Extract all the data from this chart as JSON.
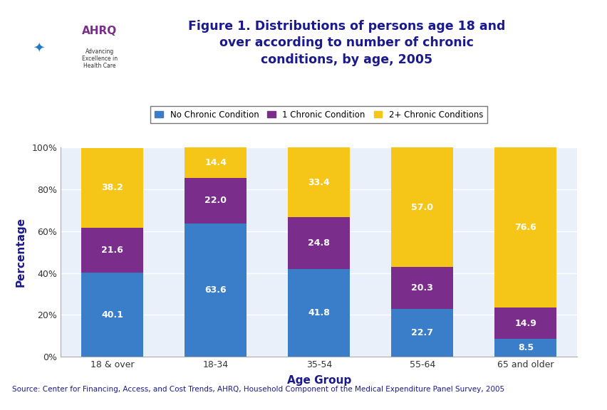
{
  "categories": [
    "18 & over",
    "18-34",
    "35-54",
    "55-64",
    "65 and older"
  ],
  "no_chronic": [
    40.1,
    63.6,
    41.8,
    22.7,
    8.5
  ],
  "one_chronic": [
    21.6,
    22.0,
    24.8,
    20.3,
    14.9
  ],
  "two_plus_chronic": [
    38.2,
    14.4,
    33.4,
    57.0,
    76.6
  ],
  "no_chronic_color": "#3A7DC9",
  "one_chronic_color": "#7B2D8B",
  "two_plus_color": "#F5C518",
  "bar_width": 0.6,
  "title": "Figure 1. Distributions of persons age 18 and\nover according to number of chronic\nconditions, by age, 2005",
  "xlabel": "Age Group",
  "ylabel": "Percentage",
  "yticks": [
    0,
    20,
    40,
    60,
    80,
    100
  ],
  "ytick_labels": [
    "0%",
    "20%",
    "40%",
    "60%",
    "80%",
    "100%"
  ],
  "legend_labels": [
    "No Chronic Condition",
    "1 Chronic Condition",
    "2+ Chronic Conditions"
  ],
  "source_text": "Source: Center for Financing, Access, and Cost Trends, AHRQ, Household Component of the Medical Expenditure Panel Survey, 2005",
  "title_color": "#1A1A8C",
  "axis_label_color": "#1A1A8C",
  "tick_color": "#333333",
  "background_color": "#FFFFFF",
  "chart_bg_color": "#EAF0FA",
  "border_color": "#1A1A8C",
  "header_line_color": "#00008B",
  "text_color_on_bar": "#FFFFFF"
}
